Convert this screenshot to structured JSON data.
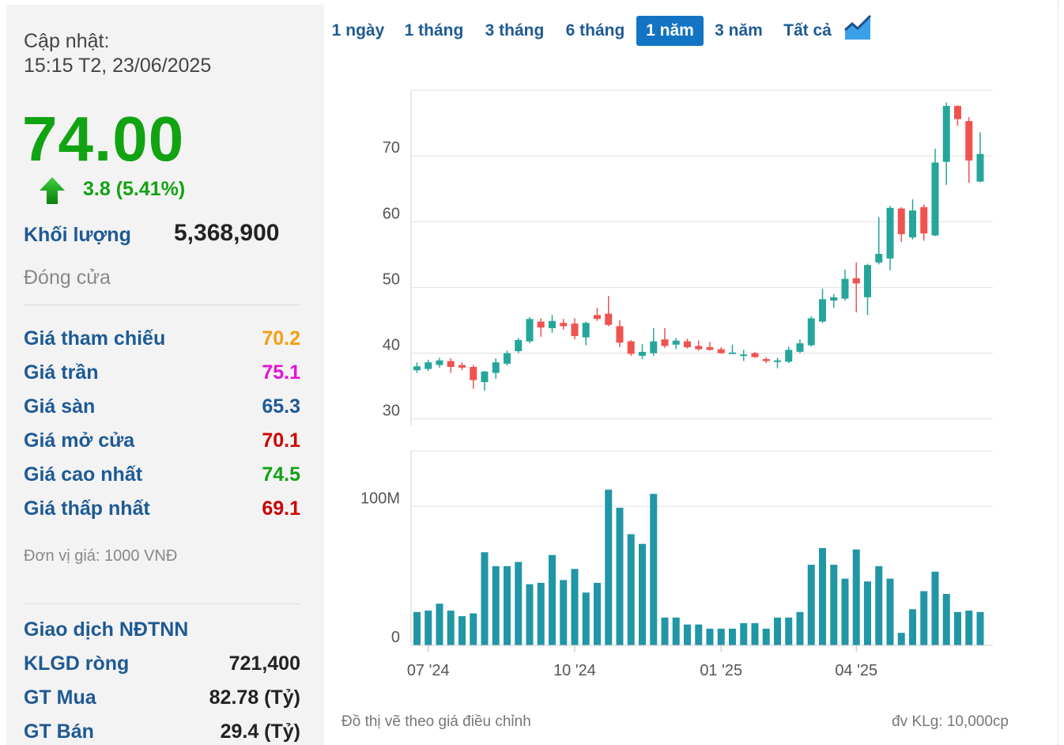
{
  "updated": {
    "label": "Cập nhật:",
    "time": "15:15 T2, 23/06/2025"
  },
  "price": {
    "value": "74.00",
    "change": "3.8 (5.41%)",
    "color": "#12a312"
  },
  "volume": {
    "label": "Khối lượng",
    "value": "5,368,900"
  },
  "status": "Đóng cửa",
  "stats": [
    {
      "label": "Giá tham chiếu",
      "value": "70.2",
      "color": "#f59d14"
    },
    {
      "label": "Giá trần",
      "value": "75.1",
      "color": "#e612d6"
    },
    {
      "label": "Giá sàn",
      "value": "65.3",
      "color": "#1e5a94"
    },
    {
      "label": "Giá mở cửa",
      "value": "70.1",
      "color": "#cc0000"
    },
    {
      "label": "Giá cao nhất",
      "value": "74.5",
      "color": "#12a312"
    },
    {
      "label": "Giá thấp nhất",
      "value": "69.1",
      "color": "#cc0000"
    }
  ],
  "price_unit": "Đơn vị giá: 1000 VNĐ",
  "foreign": {
    "title": "Giao dịch NĐTNN",
    "rows": [
      {
        "label": "KLGD ròng",
        "value": "721,400"
      },
      {
        "label": "GT Mua",
        "value": "82.78 (Tỷ)"
      },
      {
        "label": "GT Bán",
        "value": "29.4 (Tỷ)"
      }
    ]
  },
  "tabs": [
    {
      "label": "1 ngày",
      "active": false
    },
    {
      "label": "1 tháng",
      "active": false
    },
    {
      "label": "3 tháng",
      "active": false
    },
    {
      "label": "6 tháng",
      "active": false
    },
    {
      "label": "1 năm",
      "active": true
    },
    {
      "label": "3 năm",
      "active": false
    },
    {
      "label": "Tất cả",
      "active": false
    }
  ],
  "chart_type_icon": "area-chart-icon",
  "footnote": "Đồ thị vẽ theo giá điều chỉnh",
  "volume_unit": "đv KLg: 10,000cp",
  "chart_data": {
    "type": "candlestick",
    "colors": {
      "up": "#26a69a",
      "down": "#ef5350"
    },
    "price_axis": {
      "ticks": [
        30,
        40,
        50,
        60,
        70
      ],
      "tick_labels": [
        "30",
        "40",
        "50",
        "60",
        "70"
      ],
      "ylim": [
        29,
        80
      ]
    },
    "volume_axis": {
      "ticks": [
        0,
        100
      ],
      "tick_labels": [
        "0",
        "100M"
      ],
      "ylim": [
        0,
        140
      ]
    },
    "x_ticks": [
      {
        "index": 1,
        "label": "07 '24"
      },
      {
        "index": 14,
        "label": "10 '24"
      },
      {
        "index": 27,
        "label": "01 '25"
      },
      {
        "index": 39,
        "label": "04 '25"
      }
    ],
    "candles": [
      {
        "o": 37.4,
        "h": 38.6,
        "l": 37.0,
        "c": 38.0
      },
      {
        "o": 37.6,
        "h": 39.0,
        "l": 37.3,
        "c": 38.6
      },
      {
        "o": 38.2,
        "h": 39.3,
        "l": 37.8,
        "c": 38.9
      },
      {
        "o": 38.8,
        "h": 39.2,
        "l": 37.0,
        "c": 37.9
      },
      {
        "o": 38.2,
        "h": 38.6,
        "l": 37.4,
        "c": 37.8
      },
      {
        "o": 37.9,
        "h": 38.2,
        "l": 34.6,
        "c": 35.9
      },
      {
        "o": 35.6,
        "h": 37.3,
        "l": 34.3,
        "c": 37.2
      },
      {
        "o": 37.0,
        "h": 39.2,
        "l": 36.1,
        "c": 38.6
      },
      {
        "o": 38.4,
        "h": 40.4,
        "l": 38.1,
        "c": 40.0
      },
      {
        "o": 40.3,
        "h": 42.3,
        "l": 40.0,
        "c": 42.0
      },
      {
        "o": 41.8,
        "h": 45.5,
        "l": 41.5,
        "c": 45.2
      },
      {
        "o": 44.8,
        "h": 45.3,
        "l": 42.5,
        "c": 43.9
      },
      {
        "o": 43.8,
        "h": 45.8,
        "l": 43.1,
        "c": 44.9
      },
      {
        "o": 44.6,
        "h": 45.2,
        "l": 43.6,
        "c": 44.1
      },
      {
        "o": 44.5,
        "h": 45.3,
        "l": 42.1,
        "c": 42.6
      },
      {
        "o": 42.4,
        "h": 44.8,
        "l": 41.2,
        "c": 44.6
      },
      {
        "o": 45.8,
        "h": 46.9,
        "l": 44.9,
        "c": 45.2
      },
      {
        "o": 46.0,
        "h": 48.7,
        "l": 44.1,
        "c": 44.3
      },
      {
        "o": 44.1,
        "h": 45.0,
        "l": 40.9,
        "c": 41.6
      },
      {
        "o": 41.8,
        "h": 42.0,
        "l": 39.6,
        "c": 39.9
      },
      {
        "o": 39.6,
        "h": 41.4,
        "l": 39.1,
        "c": 40.2
      },
      {
        "o": 40.0,
        "h": 43.8,
        "l": 39.6,
        "c": 41.8
      },
      {
        "o": 42.1,
        "h": 43.8,
        "l": 40.8,
        "c": 41.1
      },
      {
        "o": 41.3,
        "h": 42.3,
        "l": 40.6,
        "c": 41.9
      },
      {
        "o": 41.8,
        "h": 42.2,
        "l": 40.7,
        "c": 40.9
      },
      {
        "o": 41.1,
        "h": 41.9,
        "l": 40.4,
        "c": 40.6
      },
      {
        "o": 40.9,
        "h": 41.7,
        "l": 40.4,
        "c": 40.5
      },
      {
        "o": 40.6,
        "h": 40.9,
        "l": 39.9,
        "c": 40.0
      },
      {
        "o": 40.1,
        "h": 41.3,
        "l": 39.9,
        "c": 40.1
      },
      {
        "o": 39.6,
        "h": 40.5,
        "l": 38.8,
        "c": 39.8
      },
      {
        "o": 40.0,
        "h": 40.2,
        "l": 39.3,
        "c": 39.4
      },
      {
        "o": 39.1,
        "h": 39.4,
        "l": 38.5,
        "c": 38.8
      },
      {
        "o": 38.7,
        "h": 39.3,
        "l": 37.7,
        "c": 38.9
      },
      {
        "o": 38.7,
        "h": 41.0,
        "l": 38.5,
        "c": 40.5
      },
      {
        "o": 40.2,
        "h": 42.1,
        "l": 40.0,
        "c": 41.5
      },
      {
        "o": 41.2,
        "h": 45.6,
        "l": 41.0,
        "c": 45.3
      },
      {
        "o": 44.8,
        "h": 49.8,
        "l": 44.6,
        "c": 48.2
      },
      {
        "o": 48.0,
        "h": 49.0,
        "l": 46.9,
        "c": 48.5
      },
      {
        "o": 48.3,
        "h": 52.7,
        "l": 48.0,
        "c": 51.3
      },
      {
        "o": 51.4,
        "h": 53.8,
        "l": 46.2,
        "c": 50.6
      },
      {
        "o": 48.5,
        "h": 53.6,
        "l": 45.8,
        "c": 53.4
      },
      {
        "o": 53.8,
        "h": 60.7,
        "l": 53.5,
        "c": 55.1
      },
      {
        "o": 54.4,
        "h": 62.4,
        "l": 52.6,
        "c": 62.1
      },
      {
        "o": 62.0,
        "h": 62.2,
        "l": 56.9,
        "c": 58.1
      },
      {
        "o": 57.6,
        "h": 63.4,
        "l": 57.3,
        "c": 61.7
      },
      {
        "o": 62.2,
        "h": 62.6,
        "l": 57.1,
        "c": 58.2
      },
      {
        "o": 57.9,
        "h": 71.1,
        "l": 57.8,
        "c": 69.0
      },
      {
        "o": 69.1,
        "h": 78.1,
        "l": 65.6,
        "c": 77.6
      },
      {
        "o": 77.6,
        "h": 77.7,
        "l": 74.6,
        "c": 75.6
      },
      {
        "o": 75.3,
        "h": 75.9,
        "l": 65.9,
        "c": 69.3
      },
      {
        "o": 66.1,
        "h": 73.6,
        "l": 66.0,
        "c": 70.3
      }
    ],
    "volumes": [
      24,
      25,
      30,
      25,
      21,
      23,
      67,
      57,
      57,
      60,
      44,
      45,
      65,
      47,
      55,
      38,
      45,
      112,
      99,
      80,
      73,
      109,
      20,
      20,
      15,
      15,
      12,
      12,
      12,
      16,
      16,
      12,
      20,
      20,
      24,
      58,
      70,
      58,
      48,
      69,
      46,
      57,
      48,
      9,
      26,
      39,
      53,
      37,
      24,
      25,
      24
    ]
  }
}
